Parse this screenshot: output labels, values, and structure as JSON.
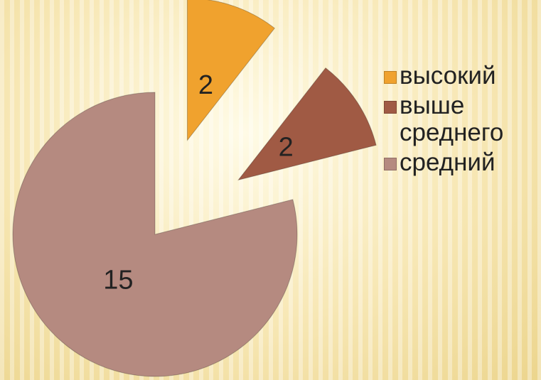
{
  "chart_data": {
    "type": "pie",
    "categories": [
      "высокий",
      "выше среднего",
      "средний"
    ],
    "values": [
      2,
      2,
      15
    ],
    "colors": [
      "#f0a22e",
      "#a05a44",
      "#b58a80"
    ],
    "legend": "right"
  }
}
